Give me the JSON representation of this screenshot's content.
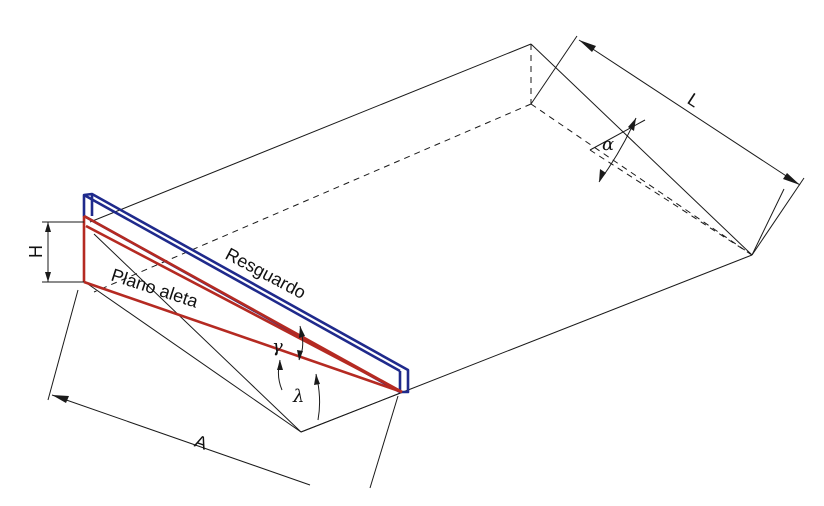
{
  "labels": {
    "resguardo": "Resguardo",
    "plano_aleta": "Plano aleta",
    "L": "L",
    "H": "H",
    "A": "A",
    "alpha": "α",
    "gamma": "γ",
    "lambda": "λ"
  },
  "colors": {
    "resguardo_outline": "#1f2a8c",
    "plano_aleta_outline": "#b52a22",
    "construction_lines": "#1a1a1a"
  }
}
